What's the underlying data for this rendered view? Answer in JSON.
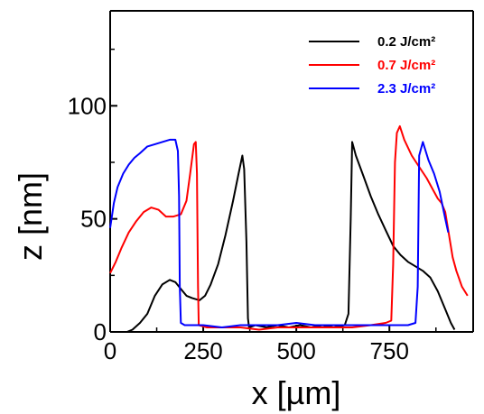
{
  "chart_data": {
    "type": "line",
    "xlabel": "x [µm]",
    "ylabel": "z [nm]",
    "xlim": [
      0,
      975
    ],
    "ylim": [
      0,
      142
    ],
    "xticks": [
      0,
      250,
      500,
      750
    ],
    "yticks": [
      0,
      50,
      100
    ],
    "grid": false,
    "legend_position": "top-right",
    "series": [
      {
        "name": "0.2 J/cm²",
        "color": "#000000",
        "points": [
          [
            45,
            0
          ],
          [
            60,
            1
          ],
          [
            80,
            4
          ],
          [
            100,
            8
          ],
          [
            120,
            16
          ],
          [
            140,
            21
          ],
          [
            160,
            23
          ],
          [
            175,
            22
          ],
          [
            190,
            19
          ],
          [
            205,
            16
          ],
          [
            220,
            15
          ],
          [
            240,
            14
          ],
          [
            255,
            16
          ],
          [
            270,
            21
          ],
          [
            290,
            30
          ],
          [
            310,
            43
          ],
          [
            330,
            58
          ],
          [
            345,
            70
          ],
          [
            355,
            78
          ],
          [
            360,
            72
          ],
          [
            366,
            40
          ],
          [
            370,
            6
          ],
          [
            373,
            2
          ],
          [
            390,
            3
          ],
          [
            420,
            2
          ],
          [
            450,
            3
          ],
          [
            480,
            2
          ],
          [
            510,
            3
          ],
          [
            540,
            2
          ],
          [
            570,
            3
          ],
          [
            600,
            2
          ],
          [
            630,
            3
          ],
          [
            640,
            8
          ],
          [
            646,
            50
          ],
          [
            650,
            84
          ],
          [
            660,
            78
          ],
          [
            680,
            69
          ],
          [
            700,
            60
          ],
          [
            720,
            52
          ],
          [
            740,
            45
          ],
          [
            760,
            38
          ],
          [
            780,
            34
          ],
          [
            800,
            31
          ],
          [
            820,
            29
          ],
          [
            840,
            27
          ],
          [
            860,
            24
          ],
          [
            880,
            18
          ],
          [
            900,
            10
          ],
          [
            915,
            4
          ],
          [
            925,
            1
          ]
        ]
      },
      {
        "name": "0.7 J/cm²",
        "color": "#ff0000",
        "points": [
          [
            0,
            26
          ],
          [
            15,
            31
          ],
          [
            30,
            37
          ],
          [
            50,
            44
          ],
          [
            70,
            49
          ],
          [
            90,
            53
          ],
          [
            110,
            55
          ],
          [
            130,
            54
          ],
          [
            150,
            51
          ],
          [
            170,
            51
          ],
          [
            190,
            52
          ],
          [
            205,
            58
          ],
          [
            215,
            70
          ],
          [
            225,
            83
          ],
          [
            230,
            84
          ],
          [
            233,
            70
          ],
          [
            236,
            20
          ],
          [
            238,
            3
          ],
          [
            260,
            2
          ],
          [
            300,
            2
          ],
          [
            350,
            2
          ],
          [
            400,
            1
          ],
          [
            450,
            2
          ],
          [
            500,
            2
          ],
          [
            550,
            2
          ],
          [
            600,
            2
          ],
          [
            650,
            2
          ],
          [
            700,
            3
          ],
          [
            740,
            4
          ],
          [
            755,
            5
          ],
          [
            760,
            30
          ],
          [
            765,
            75
          ],
          [
            770,
            88
          ],
          [
            778,
            91
          ],
          [
            790,
            85
          ],
          [
            810,
            78
          ],
          [
            830,
            73
          ],
          [
            850,
            68
          ],
          [
            870,
            62
          ],
          [
            880,
            59
          ],
          [
            890,
            57
          ],
          [
            900,
            53
          ],
          [
            910,
            43
          ],
          [
            920,
            33
          ],
          [
            930,
            27
          ],
          [
            945,
            20
          ],
          [
            960,
            16
          ]
        ]
      },
      {
        "name": "2.3 J/cm²",
        "color": "#0000ff",
        "points": [
          [
            0,
            46
          ],
          [
            10,
            57
          ],
          [
            20,
            64
          ],
          [
            35,
            70
          ],
          [
            50,
            74
          ],
          [
            65,
            77
          ],
          [
            80,
            79
          ],
          [
            100,
            82
          ],
          [
            120,
            83
          ],
          [
            140,
            84
          ],
          [
            160,
            85
          ],
          [
            175,
            85
          ],
          [
            182,
            80
          ],
          [
            185,
            60
          ],
          [
            187,
            20
          ],
          [
            190,
            4
          ],
          [
            200,
            3
          ],
          [
            250,
            3
          ],
          [
            300,
            2
          ],
          [
            350,
            3
          ],
          [
            400,
            3
          ],
          [
            450,
            3
          ],
          [
            500,
            4
          ],
          [
            550,
            3
          ],
          [
            600,
            3
          ],
          [
            650,
            3
          ],
          [
            700,
            3
          ],
          [
            750,
            3
          ],
          [
            800,
            3
          ],
          [
            820,
            4
          ],
          [
            826,
            20
          ],
          [
            830,
            78
          ],
          [
            840,
            84
          ],
          [
            855,
            76
          ],
          [
            870,
            70
          ],
          [
            885,
            62
          ],
          [
            900,
            50
          ],
          [
            908,
            44
          ]
        ]
      }
    ]
  }
}
